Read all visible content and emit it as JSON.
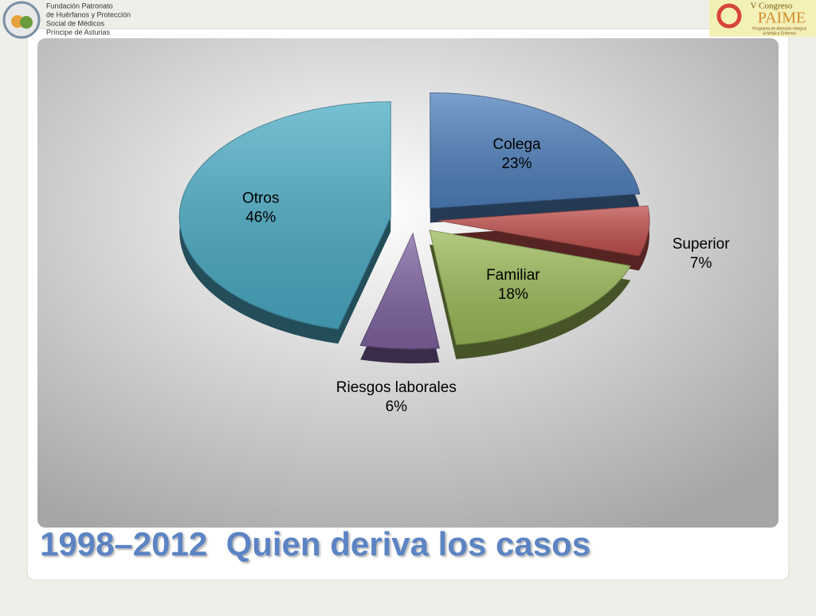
{
  "header": {
    "left_logo": [
      "Fundación Patronato",
      "de Huérfanos y Protección",
      "Social de Médicos",
      "Príncipe de Asturias"
    ],
    "right_logo": {
      "line1": "V Congreso",
      "line2": "PAIME",
      "line3": "Programa de Atención Integral",
      "line4": "al Médico Enfermo"
    }
  },
  "chart_data": {
    "type": "pie",
    "title": "1998–2012  Quien deriva los casos",
    "categories": [
      "Colega",
      "Superior",
      "Familiar",
      "Riesgos laborales",
      "Otros"
    ],
    "values": [
      23,
      7,
      18,
      6,
      46
    ],
    "value_labels": [
      "23%",
      "7%",
      "18%",
      "6%",
      "46%"
    ],
    "colors": [
      "#4f81bd",
      "#c0504d",
      "#9bbb59",
      "#8064a2",
      "#4bacc6"
    ]
  }
}
